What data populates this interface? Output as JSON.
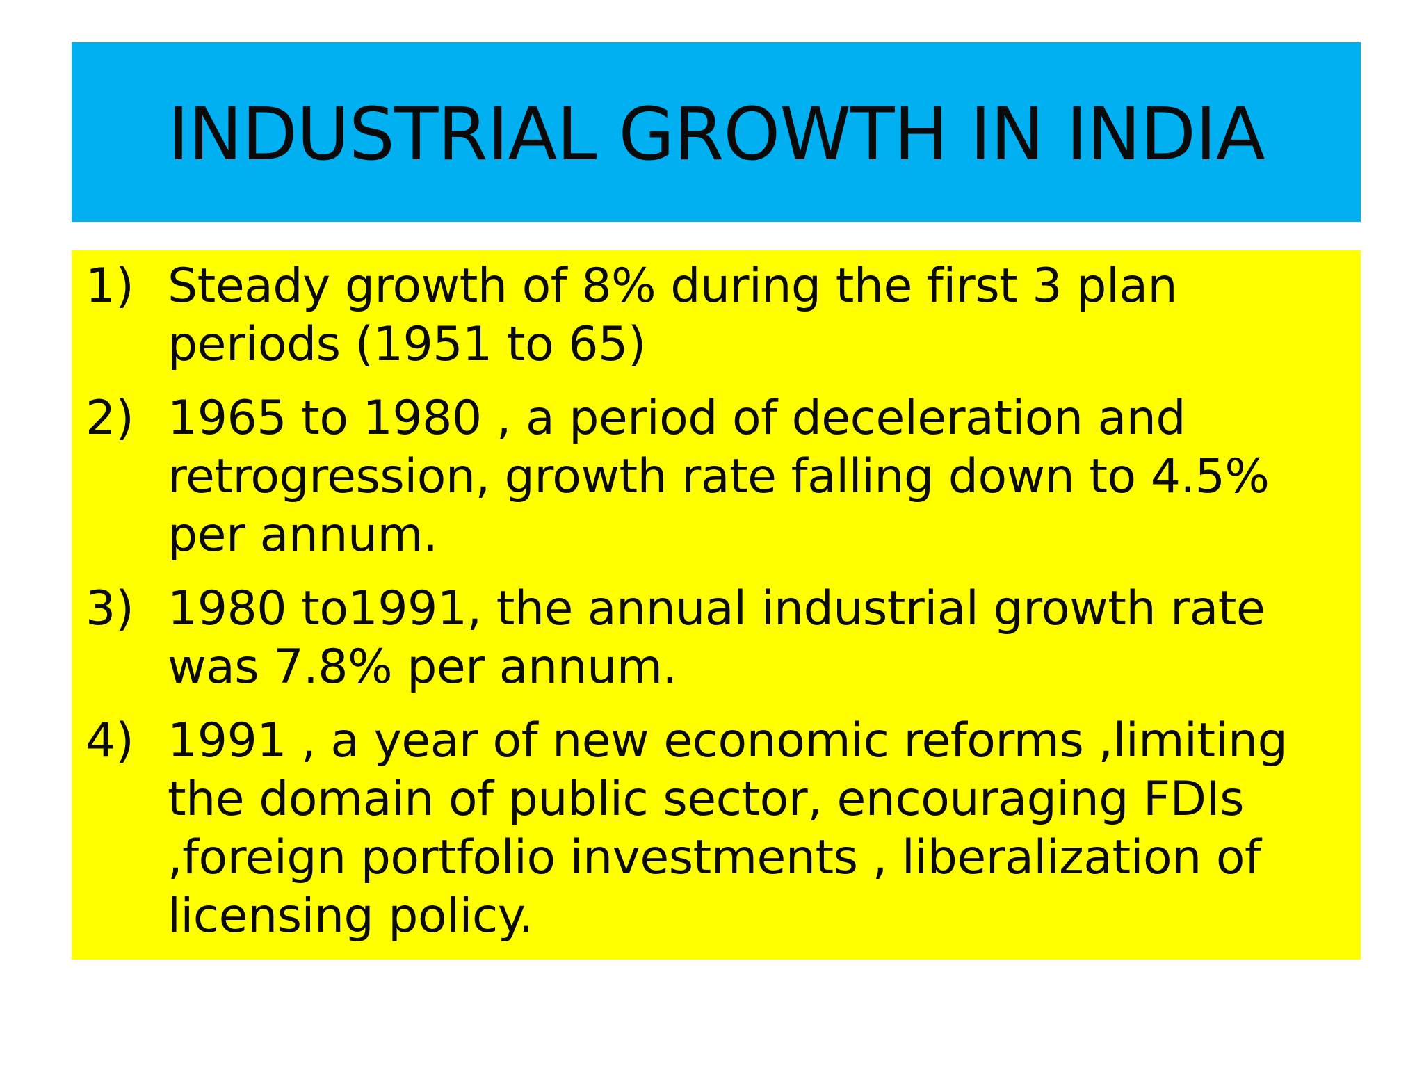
{
  "slide": {
    "title": "INDUSTRIAL GROWTH IN INDIA",
    "items": [
      {
        "num": "1)",
        "text": "Steady growth of 8% during the first 3 plan periods (1951 to 65)"
      },
      {
        "num": "2)",
        "text": "1965 to 1980 , a period of deceleration and retrogression, growth rate falling down to 4.5% per annum."
      },
      {
        "num": "3)",
        "text": "1980 to1991, the annual industrial growth rate was 7.8% per annum."
      },
      {
        "num": "4)",
        "text": "1991 , a year of new economic reforms ,limiting the domain of public sector, encouraging FDIs ,foreign portfolio investments , liberalization of licensing policy."
      }
    ]
  },
  "colors": {
    "title_background": "#00b0f0",
    "content_background": "#ffff00",
    "text": "#0a0a0a"
  }
}
